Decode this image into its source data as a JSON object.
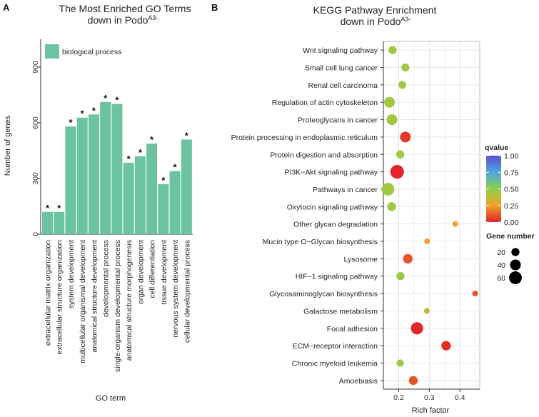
{
  "chart_data": [
    {
      "panel": "A",
      "type": "bar",
      "title": "The Most Enriched GO Terms",
      "subtitle_main": "down in Podo",
      "subtitle_sup": "A3-",
      "xlabel": "GO term",
      "ylabel": "Number of genes",
      "ylim": [
        0,
        1050
      ],
      "yticks": [
        "0",
        "300",
        "600",
        "900"
      ],
      "legend": "biological process",
      "color": "#6cc3a0",
      "categories": [
        "extracellular matrix organization",
        "extracellular structure organization",
        "system development",
        "multicellular organismal development",
        "anatomical structure development",
        "developmental process",
        "single-organism developmental process",
        "anatomical structure morphogenesis",
        "organ development",
        "cell differentiation",
        "tissue development",
        "nervous system development",
        "cellular developmental process"
      ],
      "values": [
        120,
        120,
        580,
        628,
        645,
        712,
        702,
        385,
        420,
        488,
        270,
        340,
        510
      ],
      "annotations": [
        "*",
        "*",
        "*",
        "*",
        "*",
        "*",
        "*",
        "*",
        "*",
        "*",
        "*",
        "*",
        "*"
      ]
    },
    {
      "panel": "B",
      "type": "scatter",
      "title": "KEGG Pathway Enrichment",
      "subtitle_main": "down in Podo",
      "subtitle_sup": "A3-",
      "xlabel": "Rich factor",
      "xlim": [
        0.15,
        0.465
      ],
      "xticks": [
        "0.2",
        "0.3",
        "0.4"
      ],
      "grid": true,
      "categories": [
        "Wnt signaling pathway",
        "Small cell lung cancer",
        "Renal cell carcinoma",
        "Regulation of actin cytoskeleton",
        "Proteoglycans in cancer",
        "Protein processing in endoplasmic reticulum",
        "Protein digestion and absorption",
        "PI3K−Akt signaling pathway",
        "Pathways in cancer",
        "Oxytocin signaling pathway",
        "Other glycan degradation",
        "Mucin type O−Glycan biosynthesis",
        "Lysosome",
        "HIF−1 signaling pathway",
        "Glycosaminoglycan biosynthesis",
        "Galactose metabolism",
        "Focal adhesion",
        "ECM−receptor interaction",
        "Chronic myeloid leukemia",
        "Amoebiasis"
      ],
      "rich_factor": [
        0.18,
        0.222,
        0.212,
        0.17,
        0.178,
        0.222,
        0.205,
        0.195,
        0.165,
        0.177,
        0.385,
        0.293,
        0.23,
        0.206,
        0.45,
        0.292,
        0.26,
        0.355,
        0.205,
        0.248
      ],
      "qvalue": [
        0.45,
        0.45,
        0.45,
        0.45,
        0.45,
        0.05,
        0.45,
        0.01,
        0.45,
        0.45,
        0.25,
        0.25,
        0.1,
        0.45,
        0.1,
        0.35,
        0.02,
        0.03,
        0.45,
        0.1
      ],
      "gene_number": [
        20,
        20,
        18,
        40,
        40,
        40,
        20,
        70,
        60,
        25,
        8,
        8,
        30,
        20,
        8,
        8,
        55,
        30,
        15,
        25
      ],
      "color_legend": {
        "title": "qvalue",
        "ticks": [
          "1.00",
          "0.75",
          "0.50",
          "0.25",
          "0.00"
        ],
        "stops": [
          "#5a4fcf",
          "#4fa6e0",
          "#8cd24a",
          "#f2a12a",
          "#e0202a"
        ]
      },
      "size_legend": {
        "title": "Gene number",
        "items": [
          "20",
          "40",
          "60"
        ]
      }
    }
  ]
}
